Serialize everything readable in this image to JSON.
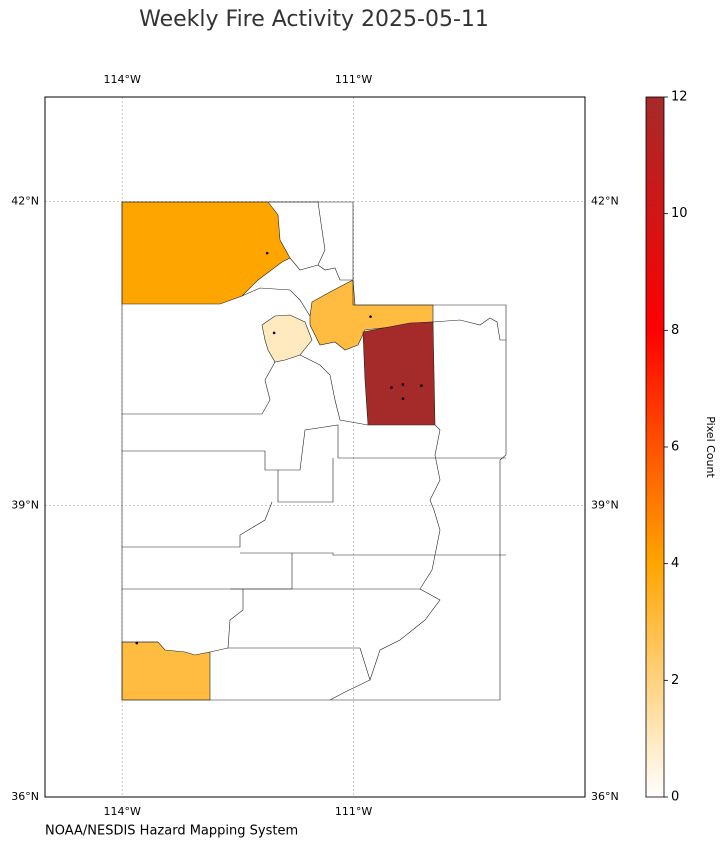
{
  "title": "Weekly Fire Activity 2025-05-11",
  "source": "NOAA/NESDIS Hazard Mapping System",
  "map": {
    "projection": "mercator",
    "xlim": [
      -115,
      -108
    ],
    "ylim": [
      36,
      43
    ],
    "lon_ticks": [
      {
        "value": -114,
        "label": "114°W"
      },
      {
        "value": -111,
        "label": "111°W"
      }
    ],
    "lat_ticks": [
      {
        "value": 42,
        "label": "42°N"
      },
      {
        "value": 39,
        "label": "39°N"
      },
      {
        "value": 36,
        "label": "36°N"
      }
    ],
    "grid": true,
    "regions": [
      {
        "value": 4
      },
      {
        "value": 3
      },
      {
        "value": 1
      },
      {
        "value": 12
      },
      {
        "value": 3
      }
    ],
    "fires": [
      {
        "lon": -112.12,
        "lat": 41.5
      },
      {
        "lon": -112.03,
        "lat": 40.72
      },
      {
        "lon": -110.78,
        "lat": 40.88
      },
      {
        "lon": -110.51,
        "lat": 40.18
      },
      {
        "lon": -110.36,
        "lat": 40.21
      },
      {
        "lon": -110.12,
        "lat": 40.2
      },
      {
        "lon": -110.36,
        "lat": 40.07
      },
      {
        "lon": -113.81,
        "lat": 37.6
      }
    ]
  },
  "colorbar": {
    "label": "Pixel Count",
    "lim": [
      0,
      12
    ],
    "ticks": [
      0,
      2,
      4,
      6,
      8,
      10,
      12
    ],
    "colormap": [
      "#ffffff",
      "#ffa500",
      "#ff0000",
      "#a52a2a"
    ]
  }
}
